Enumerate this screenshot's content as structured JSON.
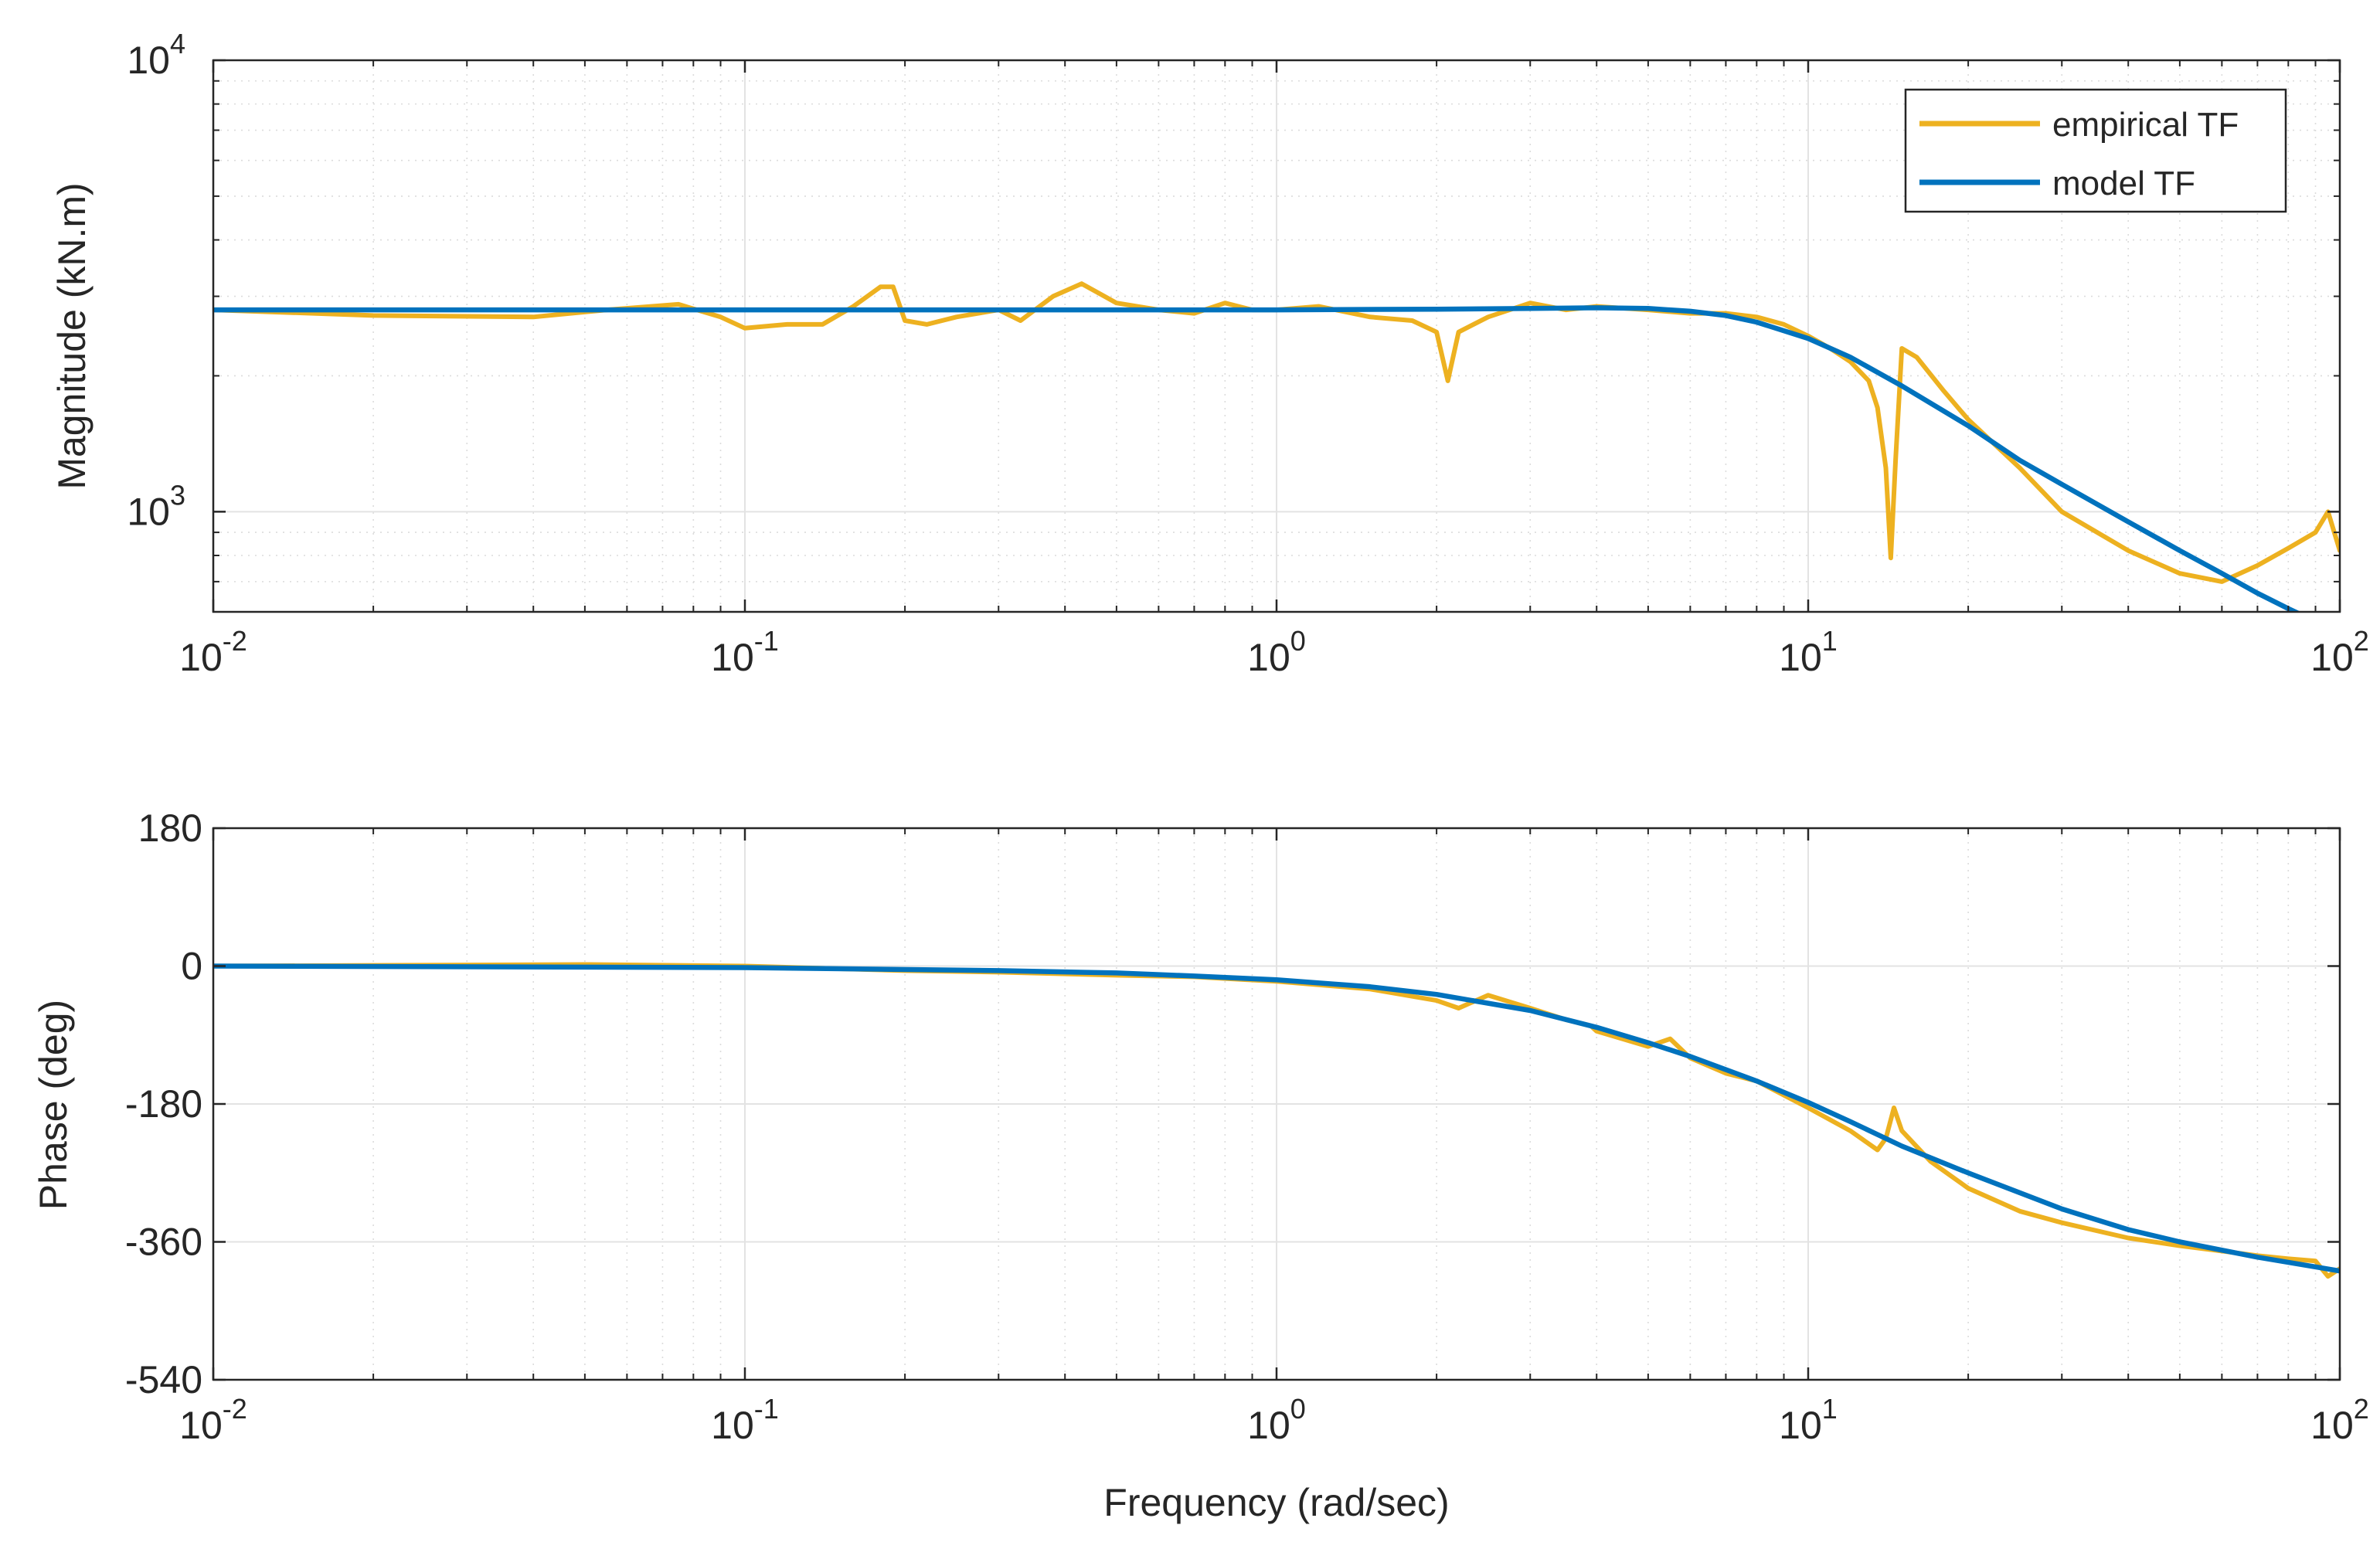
{
  "chart_data": [
    {
      "type": "line",
      "panel": "magnitude",
      "xscale": "log",
      "yscale": "log",
      "xlim": [
        0.01,
        100
      ],
      "ylim": [
        600,
        10000
      ],
      "xticks": [
        {
          "value": 0.01,
          "base": "10",
          "exp": "-2"
        },
        {
          "value": 0.1,
          "base": "10",
          "exp": "-1"
        },
        {
          "value": 1,
          "base": "10",
          "exp": "0"
        },
        {
          "value": 10,
          "base": "10",
          "exp": "1"
        },
        {
          "value": 100,
          "base": "10",
          "exp": "2"
        }
      ],
      "yticks": [
        {
          "value": 1000,
          "base": "10",
          "exp": "3"
        },
        {
          "value": 10000,
          "base": "10",
          "exp": "4"
        }
      ],
      "ylabel": "Magnitude (kN.m)",
      "grid": true,
      "legend": {
        "position": "top-right",
        "entries": [
          "empirical TF",
          "model TF"
        ]
      },
      "series": [
        {
          "name": "empirical TF",
          "color": "#EDB120",
          "x": [
            0.01,
            0.02,
            0.04,
            0.055,
            0.075,
            0.09,
            0.1,
            0.12,
            0.14,
            0.16,
            0.18,
            0.19,
            0.2,
            0.22,
            0.25,
            0.3,
            0.33,
            0.38,
            0.43,
            0.5,
            0.6,
            0.7,
            0.8,
            0.9,
            1.0,
            1.2,
            1.5,
            1.8,
            2.0,
            2.1,
            2.2,
            2.5,
            3.0,
            3.5,
            4.0,
            5.0,
            6.0,
            7.0,
            8.0,
            9.0,
            10.0,
            11.0,
            12.0,
            13.0,
            13.5,
            14.0,
            14.3,
            14.6,
            15.0,
            16.0,
            18.0,
            20.0,
            25.0,
            30.0,
            40.0,
            50.0,
            60.0,
            70.0,
            80.0,
            90.0,
            95.0,
            100.0
          ],
          "y": [
            2800,
            2720,
            2700,
            2800,
            2880,
            2700,
            2550,
            2600,
            2600,
            2850,
            3150,
            3150,
            2650,
            2600,
            2700,
            2800,
            2650,
            3000,
            3200,
            2900,
            2800,
            2750,
            2900,
            2800,
            2800,
            2850,
            2700,
            2650,
            2500,
            1950,
            2500,
            2700,
            2900,
            2800,
            2850,
            2800,
            2750,
            2750,
            2700,
            2600,
            2450,
            2300,
            2150,
            1950,
            1700,
            1250,
            790,
            1300,
            2300,
            2200,
            1850,
            1600,
            1250,
            1000,
            820,
            730,
            700,
            760,
            830,
            900,
            1000,
            820
          ]
        },
        {
          "name": "model TF",
          "color": "#0072BD",
          "x": [
            0.01,
            0.1,
            1.0,
            2.0,
            3.0,
            4.0,
            5.0,
            6.0,
            7.0,
            8.0,
            10.0,
            12.0,
            15.0,
            20.0,
            25.0,
            30.0,
            40.0,
            50.0,
            60.0,
            70.0,
            80.0,
            85.0
          ],
          "y": [
            2800,
            2800,
            2800,
            2810,
            2820,
            2830,
            2820,
            2780,
            2720,
            2630,
            2420,
            2200,
            1900,
            1550,
            1300,
            1150,
            950,
            820,
            730,
            660,
            610,
            590
          ]
        }
      ]
    },
    {
      "type": "line",
      "panel": "phase",
      "xscale": "log",
      "xlim": [
        0.01,
        100
      ],
      "ylim": [
        -540,
        180
      ],
      "xticks": [
        {
          "value": 0.01,
          "base": "10",
          "exp": "-2"
        },
        {
          "value": 0.1,
          "base": "10",
          "exp": "-1"
        },
        {
          "value": 1,
          "base": "10",
          "exp": "0"
        },
        {
          "value": 10,
          "base": "10",
          "exp": "1"
        },
        {
          "value": 100,
          "base": "10",
          "exp": "2"
        }
      ],
      "yticks": [
        {
          "value": 180,
          "label": "180"
        },
        {
          "value": 0,
          "label": "0"
        },
        {
          "value": -180,
          "label": "-180"
        },
        {
          "value": -360,
          "label": "-360"
        },
        {
          "value": -540,
          "label": "-540"
        }
      ],
      "xlabel": "Frequency (rad/sec)",
      "ylabel": "Phase (deg)",
      "grid": true,
      "series": [
        {
          "name": "empirical TF",
          "color": "#EDB120",
          "x": [
            0.01,
            0.05,
            0.1,
            0.2,
            0.3,
            0.5,
            0.7,
            1.0,
            1.5,
            2.0,
            2.2,
            2.5,
            3.0,
            3.5,
            3.9,
            4.0,
            5.0,
            5.5,
            6.0,
            7.0,
            8.0,
            10.0,
            12.0,
            13.5,
            14.0,
            14.5,
            15.0,
            17.0,
            20.0,
            25.0,
            30.0,
            40.0,
            50.0,
            60.0,
            70.0,
            80.0,
            90.0,
            95.0,
            100.0
          ],
          "y": [
            0,
            2,
            0,
            -6,
            -8,
            -12,
            -14,
            -20,
            -30,
            -45,
            -55,
            -38,
            -55,
            -70,
            -78,
            -85,
            -105,
            -95,
            -120,
            -140,
            -150,
            -185,
            -215,
            -240,
            -225,
            -185,
            -215,
            -255,
            -290,
            -320,
            -335,
            -355,
            -365,
            -372,
            -378,
            -382,
            -385,
            -405,
            -395
          ]
        },
        {
          "name": "model TF",
          "color": "#0072BD",
          "x": [
            0.01,
            0.1,
            0.3,
            0.5,
            0.7,
            1.0,
            1.5,
            2.0,
            3.0,
            4.0,
            5.0,
            6.0,
            8.0,
            10.0,
            12.0,
            15.0,
            20.0,
            30.0,
            40.0,
            50.0,
            70.0,
            100.0
          ],
          "y": [
            0,
            -2,
            -6,
            -9,
            -13,
            -18,
            -27,
            -37,
            -58,
            -80,
            -100,
            -118,
            -150,
            -178,
            -203,
            -235,
            -270,
            -317,
            -344,
            -360,
            -380,
            -398
          ]
        }
      ]
    }
  ]
}
